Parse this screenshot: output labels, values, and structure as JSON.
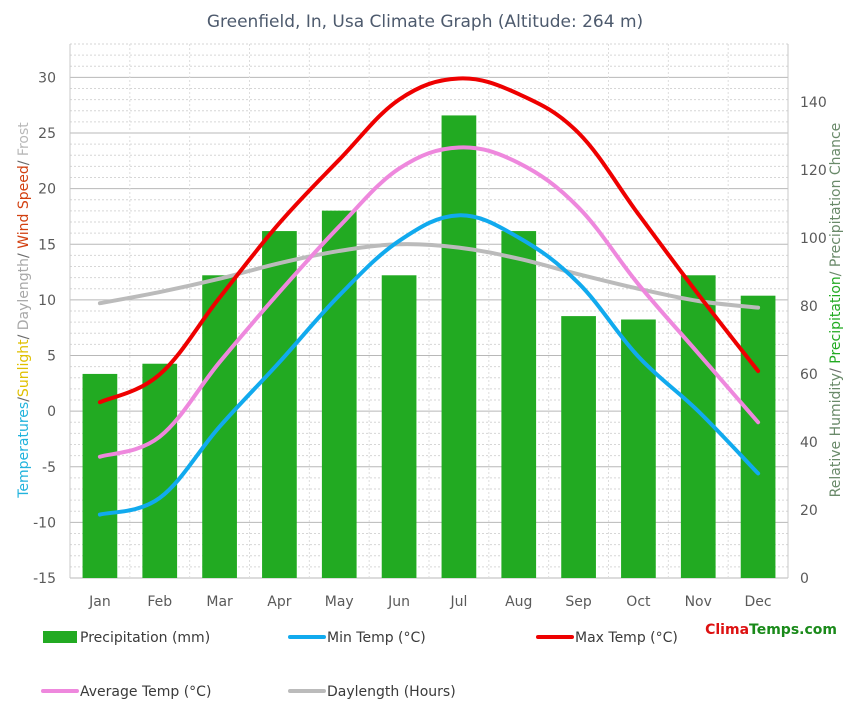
{
  "chart_data": {
    "type": "bar",
    "title": "Greenfield, In, Usa Climate Graph (Altitude: 264 m)",
    "categories": [
      "Jan",
      "Feb",
      "Mar",
      "Apr",
      "May",
      "Jun",
      "Jul",
      "Aug",
      "Sep",
      "Oct",
      "Nov",
      "Dec"
    ],
    "left_axis": {
      "title_parts": [
        {
          "text": "Temperatures",
          "color": "#22b3dd"
        },
        {
          "text": "/",
          "color": "#6a6a6a"
        },
        {
          "text": "Sunlight",
          "color": "#e0c000"
        },
        {
          "text": "/",
          "color": "#6a6a6a"
        },
        {
          "text": " Daylength",
          "color": "#a8a8a8"
        },
        {
          "text": "/",
          "color": "#6a6a6a"
        },
        {
          "text": " Wind Speed",
          "color": "#d24010"
        },
        {
          "text": "/",
          "color": "#6a6a6a"
        },
        {
          "text": " Frost",
          "color": "#b8b8b8"
        }
      ],
      "ylim": [
        -15,
        33
      ],
      "ticks": [
        -15,
        -10,
        -5,
        0,
        5,
        10,
        15,
        20,
        25,
        30
      ]
    },
    "right_axis": {
      "title_parts": [
        {
          "text": "Relative Humidity",
          "color": "#6a8a6a"
        },
        {
          "text": "/ ",
          "color": "#6a6a6a"
        },
        {
          "text": "Precipitation",
          "color": "#22aa22"
        },
        {
          "text": "/ Precipitation Chance",
          "color": "#6a8a6a"
        }
      ],
      "ylim": [
        0,
        157
      ],
      "ticks": [
        0,
        20,
        40,
        60,
        80,
        100,
        120,
        140
      ]
    },
    "series": [
      {
        "name": "Precipitation (mm)",
        "type": "bar",
        "axis": "right",
        "color": "#22aa22",
        "values": [
          60,
          63,
          89,
          102,
          108,
          89,
          136,
          102,
          77,
          76,
          89,
          83
        ]
      },
      {
        "name": "Min Temp (°C)",
        "type": "line",
        "axis": "left",
        "color": "#11aaee",
        "values": [
          -9.3,
          -7.8,
          -1.4,
          4.4,
          10.4,
          15.3,
          17.6,
          15.6,
          11.5,
          4.9,
          0.0,
          -5.6
        ]
      },
      {
        "name": "Max Temp (°C)",
        "type": "line",
        "axis": "left",
        "color": "#ee0000",
        "values": [
          0.8,
          3.3,
          10.2,
          16.9,
          22.6,
          28.0,
          29.9,
          28.5,
          25.0,
          17.7,
          10.5,
          3.6
        ]
      },
      {
        "name": "Average Temp (°C)",
        "type": "line",
        "axis": "left",
        "color": "#ee88dd",
        "values": [
          -4.1,
          -2.3,
          4.4,
          10.7,
          16.6,
          21.8,
          23.7,
          22.3,
          18.3,
          11.4,
          5.2,
          -1.0
        ]
      },
      {
        "name": "Daylength (Hours)",
        "type": "line",
        "axis": "left",
        "color": "#bbbbbb",
        "values": [
          9.7,
          10.7,
          11.9,
          13.3,
          14.4,
          15.0,
          14.7,
          13.7,
          12.3,
          11.0,
          9.9,
          9.3
        ]
      }
    ],
    "grid": true,
    "legend_position": "bottom"
  },
  "brand": {
    "part1": "Clima",
    "part2": "Temps",
    "part3": ".com",
    "color1": "#dd1111",
    "color2": "#1a8a1a"
  }
}
